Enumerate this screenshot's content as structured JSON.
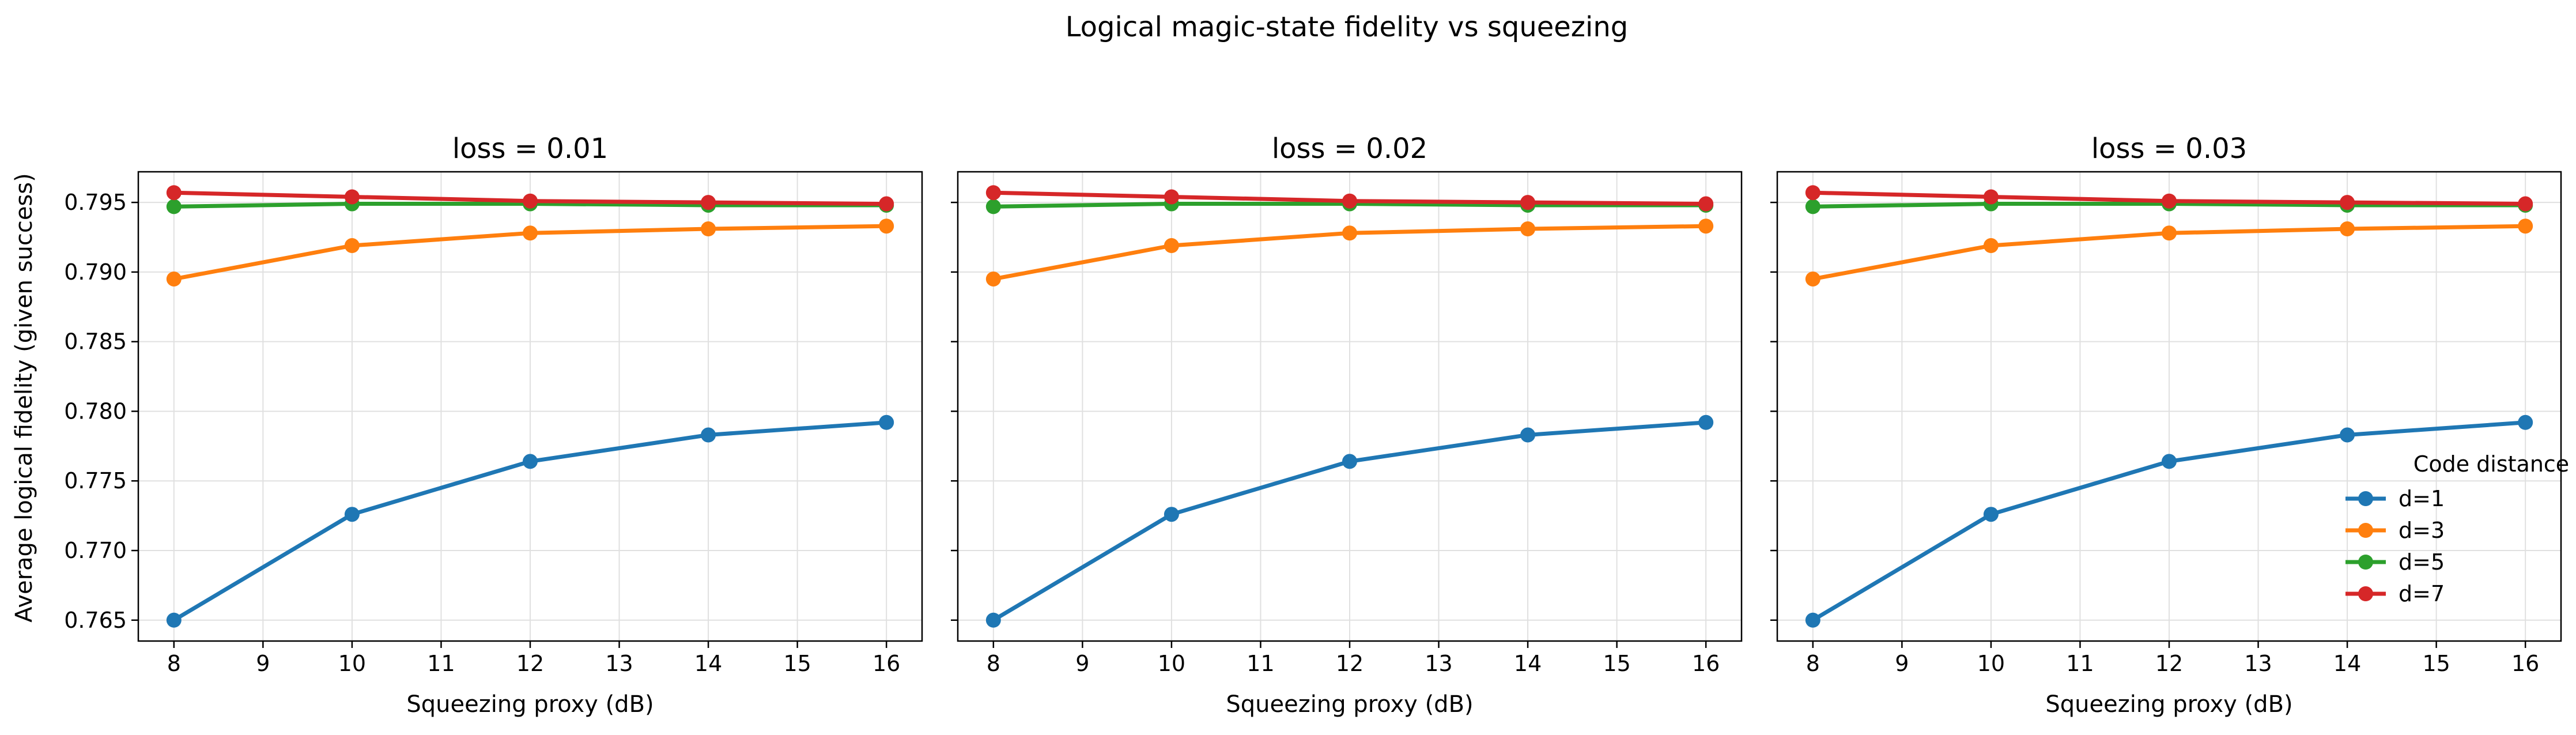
{
  "chart_data": {
    "type": "line",
    "title": "Logical magic-state fidelity vs squeezing",
    "ylabel": "Average logical fidelity (given success)",
    "shared_y": true,
    "xlim": [
      7.6,
      16.4
    ],
    "ylim": [
      0.7635,
      0.7972
    ],
    "x_ticks": [
      "8",
      "9",
      "10",
      "11",
      "12",
      "13",
      "14",
      "15",
      "16"
    ],
    "y_ticks": [
      "0.765",
      "0.770",
      "0.775",
      "0.780",
      "0.785",
      "0.790",
      "0.795"
    ],
    "grid": true,
    "legend": {
      "title": "Code distance",
      "placement": "lower-right",
      "panel": 3
    },
    "panels": [
      {
        "title": "loss = 0.01",
        "xlabel": "Squeezing proxy (dB)",
        "x": [
          8,
          10,
          12,
          14,
          16
        ],
        "series": [
          {
            "name": "d=1",
            "color": "#1f77b4",
            "values": [
              0.765,
              0.7726,
              0.7764,
              0.7783,
              0.7792
            ]
          },
          {
            "name": "d=3",
            "color": "#ff7f0e",
            "values": [
              0.7895,
              0.7919,
              0.7928,
              0.7931,
              0.7933
            ]
          },
          {
            "name": "d=5",
            "color": "#2ca02c",
            "values": [
              0.7947,
              0.7949,
              0.7949,
              0.7948,
              0.7948
            ]
          },
          {
            "name": "d=7",
            "color": "#d62728",
            "values": [
              0.7957,
              0.7954,
              0.7951,
              0.795,
              0.7949
            ]
          }
        ]
      },
      {
        "title": "loss = 0.02",
        "xlabel": "Squeezing proxy (dB)",
        "x": [
          8,
          10,
          12,
          14,
          16
        ],
        "series": [
          {
            "name": "d=1",
            "color": "#1f77b4",
            "values": [
              0.765,
              0.7726,
              0.7764,
              0.7783,
              0.7792
            ]
          },
          {
            "name": "d=3",
            "color": "#ff7f0e",
            "values": [
              0.7895,
              0.7919,
              0.7928,
              0.7931,
              0.7933
            ]
          },
          {
            "name": "d=5",
            "color": "#2ca02c",
            "values": [
              0.7947,
              0.7949,
              0.7949,
              0.7948,
              0.7948
            ]
          },
          {
            "name": "d=7",
            "color": "#d62728",
            "values": [
              0.7957,
              0.7954,
              0.7951,
              0.795,
              0.7949
            ]
          }
        ]
      },
      {
        "title": "loss = 0.03",
        "xlabel": "Squeezing proxy (dB)",
        "x": [
          8,
          10,
          12,
          14,
          16
        ],
        "series": [
          {
            "name": "d=1",
            "color": "#1f77b4",
            "values": [
              0.765,
              0.7726,
              0.7764,
              0.7783,
              0.7792
            ]
          },
          {
            "name": "d=3",
            "color": "#ff7f0e",
            "values": [
              0.7895,
              0.7919,
              0.7928,
              0.7931,
              0.7933
            ]
          },
          {
            "name": "d=5",
            "color": "#2ca02c",
            "values": [
              0.7947,
              0.7949,
              0.7949,
              0.7948,
              0.7948
            ]
          },
          {
            "name": "d=7",
            "color": "#d62728",
            "values": [
              0.7957,
              0.7954,
              0.7951,
              0.795,
              0.7949
            ]
          }
        ]
      }
    ]
  }
}
